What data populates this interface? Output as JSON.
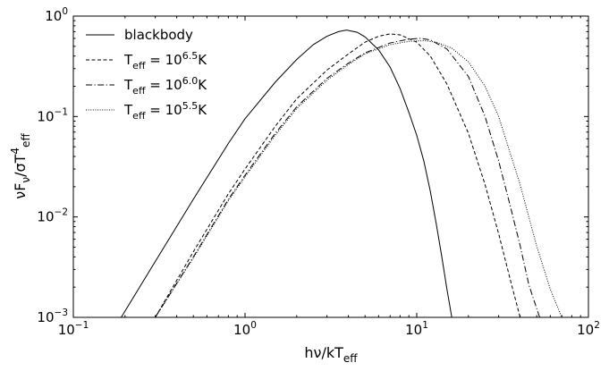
{
  "chart_data": {
    "type": "line",
    "title": "",
    "xlabel": {
      "main": "hν/kT",
      "sub": "eff"
    },
    "ylabel": {
      "parts": [
        {
          "t": "νF"
        },
        {
          "t": "ν",
          "sub": true
        },
        {
          "t": "/σT"
        },
        {
          "t": "4",
          "sup": true
        },
        {
          "t": "eff",
          "sub": true
        }
      ]
    },
    "xscale": "log",
    "yscale": "log",
    "xlim": [
      0.1,
      100
    ],
    "ylim": [
      0.001,
      1
    ],
    "x_ticks": [
      {
        "value": 0.1,
        "base": "10",
        "exp": "−1"
      },
      {
        "value": 1,
        "base": "10",
        "exp": "0"
      },
      {
        "value": 10,
        "base": "10",
        "exp": "1"
      },
      {
        "value": 100,
        "base": "10",
        "exp": "2"
      }
    ],
    "y_ticks": [
      {
        "value": 0.001,
        "base": "10",
        "exp": "−3"
      },
      {
        "value": 0.01,
        "base": "10",
        "exp": "−2"
      },
      {
        "value": 0.1,
        "base": "10",
        "exp": "−1"
      },
      {
        "value": 1,
        "base": "10",
        "exp": "0"
      }
    ],
    "legend_position": "top-left",
    "series": [
      {
        "label": [
          {
            "t": "blackbody"
          }
        ],
        "dash": "solid",
        "color": "#000000",
        "points": [
          [
            0.19,
            0.001
          ],
          [
            0.3,
            0.0036
          ],
          [
            0.5,
            0.015
          ],
          [
            0.8,
            0.054
          ],
          [
            1.0,
            0.095
          ],
          [
            1.5,
            0.22
          ],
          [
            2.0,
            0.37
          ],
          [
            2.5,
            0.52
          ],
          [
            3.0,
            0.63
          ],
          [
            3.5,
            0.7
          ],
          [
            3.9,
            0.725
          ],
          [
            4.5,
            0.69
          ],
          [
            5.0,
            0.62
          ],
          [
            6.0,
            0.46
          ],
          [
            7.0,
            0.31
          ],
          [
            8.0,
            0.19
          ],
          [
            9.0,
            0.11
          ],
          [
            10.0,
            0.065
          ],
          [
            11.0,
            0.036
          ],
          [
            12.0,
            0.018
          ],
          [
            13.0,
            0.0085
          ],
          [
            14.0,
            0.004
          ],
          [
            15.0,
            0.0019
          ],
          [
            16.0,
            0.001
          ]
        ]
      },
      {
        "label": [
          {
            "t": "T"
          },
          {
            "t": "eff",
            "sub": true
          },
          {
            "t": " = 10"
          },
          {
            "t": "6.5",
            "sup": true
          },
          {
            "t": "K"
          }
        ],
        "dash": "dashed",
        "color": "#000000",
        "points": [
          [
            0.3,
            0.001
          ],
          [
            0.5,
            0.0045
          ],
          [
            0.8,
            0.017
          ],
          [
            1.0,
            0.03
          ],
          [
            1.5,
            0.08
          ],
          [
            2.0,
            0.15
          ],
          [
            3.0,
            0.29
          ],
          [
            4.0,
            0.42
          ],
          [
            5.0,
            0.55
          ],
          [
            6.0,
            0.63
          ],
          [
            7.0,
            0.665
          ],
          [
            8.0,
            0.65
          ],
          [
            10.0,
            0.55
          ],
          [
            12.0,
            0.4
          ],
          [
            15.0,
            0.21
          ],
          [
            20.0,
            0.068
          ],
          [
            25.0,
            0.021
          ],
          [
            30.0,
            0.0068
          ],
          [
            35.0,
            0.0024
          ],
          [
            40.0,
            0.001
          ]
        ]
      },
      {
        "label": [
          {
            "t": "T"
          },
          {
            "t": "eff",
            "sub": true
          },
          {
            "t": " = 10"
          },
          {
            "t": "6.0",
            "sup": true
          },
          {
            "t": "K"
          }
        ],
        "dash": "dashdot",
        "color": "#000000",
        "points": [
          [
            0.3,
            0.001
          ],
          [
            0.5,
            0.004
          ],
          [
            0.8,
            0.015
          ],
          [
            1.0,
            0.026
          ],
          [
            1.5,
            0.068
          ],
          [
            2.0,
            0.125
          ],
          [
            3.0,
            0.24
          ],
          [
            4.0,
            0.34
          ],
          [
            5.0,
            0.43
          ],
          [
            7.0,
            0.54
          ],
          [
            9.0,
            0.59
          ],
          [
            10.5,
            0.6
          ],
          [
            12.0,
            0.58
          ],
          [
            15.0,
            0.47
          ],
          [
            20.0,
            0.25
          ],
          [
            25.0,
            0.1
          ],
          [
            30.0,
            0.036
          ],
          [
            35.0,
            0.013
          ],
          [
            40.0,
            0.0052
          ],
          [
            45.0,
            0.0021
          ],
          [
            52.0,
            0.001
          ]
        ]
      },
      {
        "label": [
          {
            "t": "T"
          },
          {
            "t": "eff",
            "sub": true
          },
          {
            "t": " = 10"
          },
          {
            "t": "5.5",
            "sup": true
          },
          {
            "t": "K"
          }
        ],
        "dash": "dotted",
        "color": "#000000",
        "points": [
          [
            0.3,
            0.001
          ],
          [
            0.5,
            0.0039
          ],
          [
            0.8,
            0.0145
          ],
          [
            1.0,
            0.025
          ],
          [
            1.5,
            0.065
          ],
          [
            2.0,
            0.12
          ],
          [
            3.0,
            0.23
          ],
          [
            4.0,
            0.33
          ],
          [
            5.0,
            0.42
          ],
          [
            7.0,
            0.52
          ],
          [
            9.0,
            0.56
          ],
          [
            11.0,
            0.57
          ],
          [
            13.0,
            0.55
          ],
          [
            16.0,
            0.48
          ],
          [
            20.0,
            0.35
          ],
          [
            25.0,
            0.2
          ],
          [
            30.0,
            0.1
          ],
          [
            40.0,
            0.021
          ],
          [
            50.0,
            0.0051
          ],
          [
            60.0,
            0.0019
          ],
          [
            70.0,
            0.001
          ]
        ]
      }
    ]
  }
}
